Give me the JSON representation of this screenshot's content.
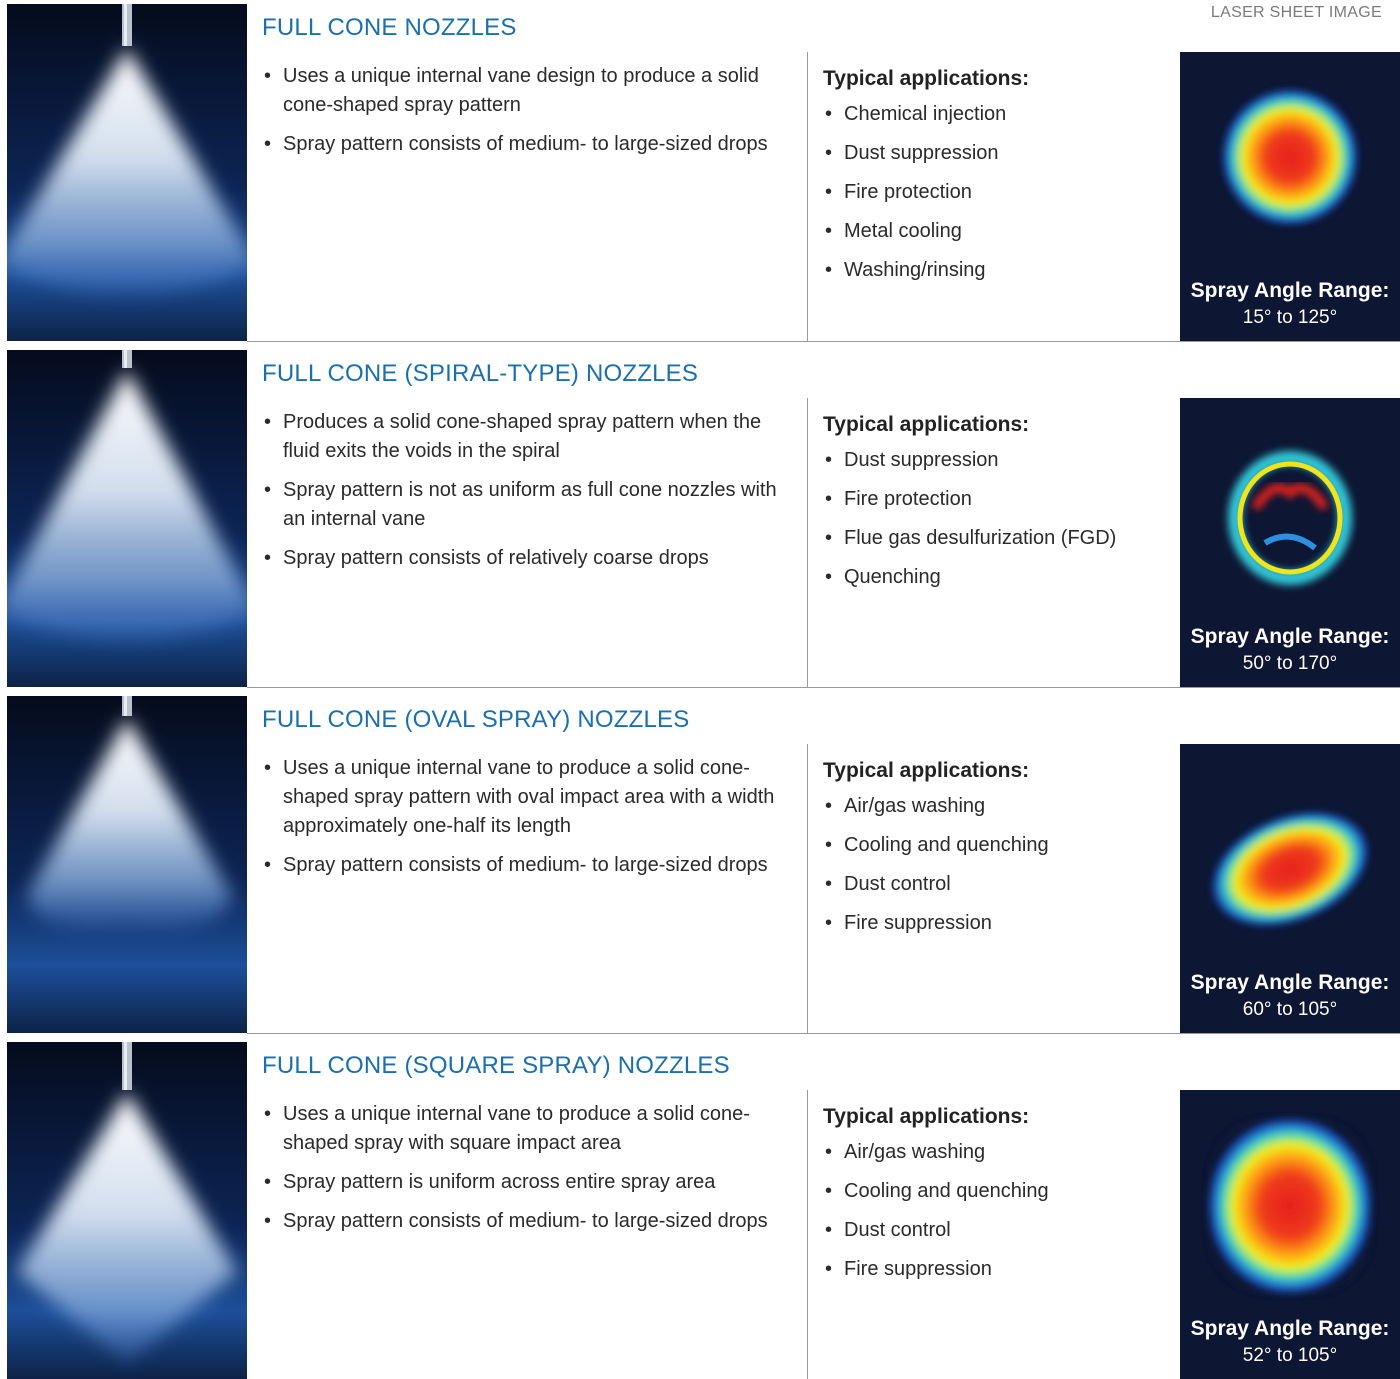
{
  "header": {
    "label": "LASER SHEET IMAGE"
  },
  "range_label": "Spray Angle Range:",
  "apps_heading": "Typical applications:",
  "rows": [
    {
      "title": "FULL CONE NOZZLES",
      "bullets": [
        "Uses a unique internal vane design to produce a solid cone-shaped spray pattern",
        "Spray pattern consists of medium- to large-sized drops"
      ],
      "applications": [
        "Chemical injection",
        "Dust suppression",
        "Fire protection",
        "Metal cooling",
        "Washing/rinsing"
      ],
      "spray_angle_range": "15° to 125°"
    },
    {
      "title": "FULL CONE (SPIRAL-TYPE) NOZZLES",
      "bullets": [
        "Produces a solid cone-shaped spray pattern when the fluid exits the voids in the spiral",
        "Spray pattern is not as uniform as full cone nozzles with an internal vane",
        "Spray pattern consists of relatively coarse drops"
      ],
      "applications": [
        "Dust suppression",
        "Fire protection",
        "Flue gas desulfurization (FGD)",
        "Quenching"
      ],
      "spray_angle_range": "50° to 170°"
    },
    {
      "title": "FULL CONE (OVAL SPRAY) NOZZLES",
      "bullets": [
        "Uses a unique internal vane to produce a solid cone-shaped spray pattern with oval impact area with a width approximately one-half its length",
        "Spray pattern consists of medium- to large-sized drops"
      ],
      "applications": [
        "Air/gas washing",
        "Cooling and quenching",
        "Dust control",
        "Fire suppression"
      ],
      "spray_angle_range": "60° to 105°"
    },
    {
      "title": "FULL CONE (SQUARE SPRAY) NOZZLES",
      "bullets": [
        "Uses a unique internal vane to produce a solid cone-shaped spray with square impact area",
        "Spray pattern is uniform across entire spray area",
        "Spray pattern consists of medium- to large-sized drops"
      ],
      "applications": [
        "Air/gas washing",
        "Cooling and quenching",
        "Dust control",
        "Fire suppression"
      ],
      "spray_angle_range": "52° to 105°"
    }
  ]
}
